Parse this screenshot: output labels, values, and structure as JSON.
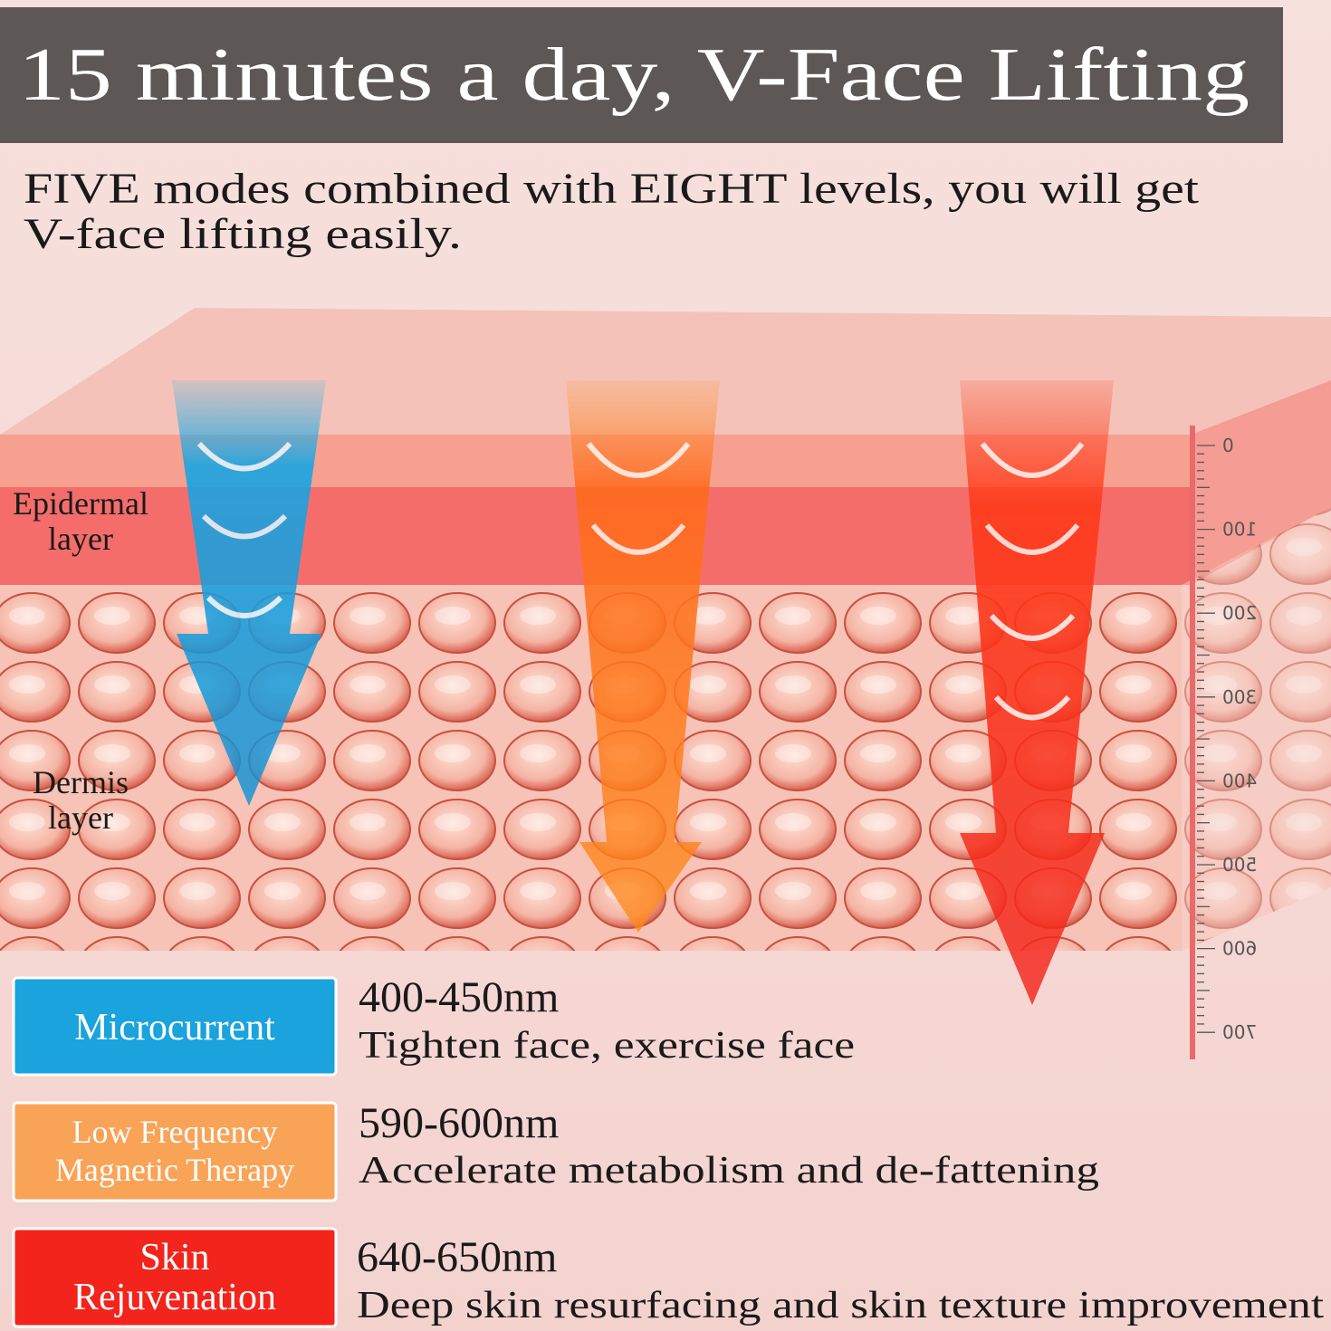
{
  "header": {
    "title": "15 minutes a day, V-Face Lifting"
  },
  "subtitle": [
    "FIVE modes combined with EIGHT levels, you will get",
    "V-face lifting easily."
  ],
  "layers": {
    "epidermal": [
      "Epidermal",
      "layer"
    ],
    "dermis": [
      "Dermis",
      "layer"
    ]
  },
  "scale": {
    "ticks": [
      "0",
      "100",
      "200",
      "300",
      "400",
      "500",
      "600",
      "700"
    ]
  },
  "modes": [
    {
      "badge": [
        "Microcurrent"
      ],
      "wavelength": "400-450nm",
      "description": "Tighten face, exercise face"
    },
    {
      "badge": [
        "Low Frequency",
        "Magnetic Therapy"
      ],
      "wavelength": "590-600nm",
      "description": "Accelerate metabolism and de-fattening"
    },
    {
      "badge": [
        "Skin",
        "Rejuvenation"
      ],
      "wavelength": "640-650nm",
      "description": "Deep skin resurfacing and skin texture improvement"
    }
  ]
}
